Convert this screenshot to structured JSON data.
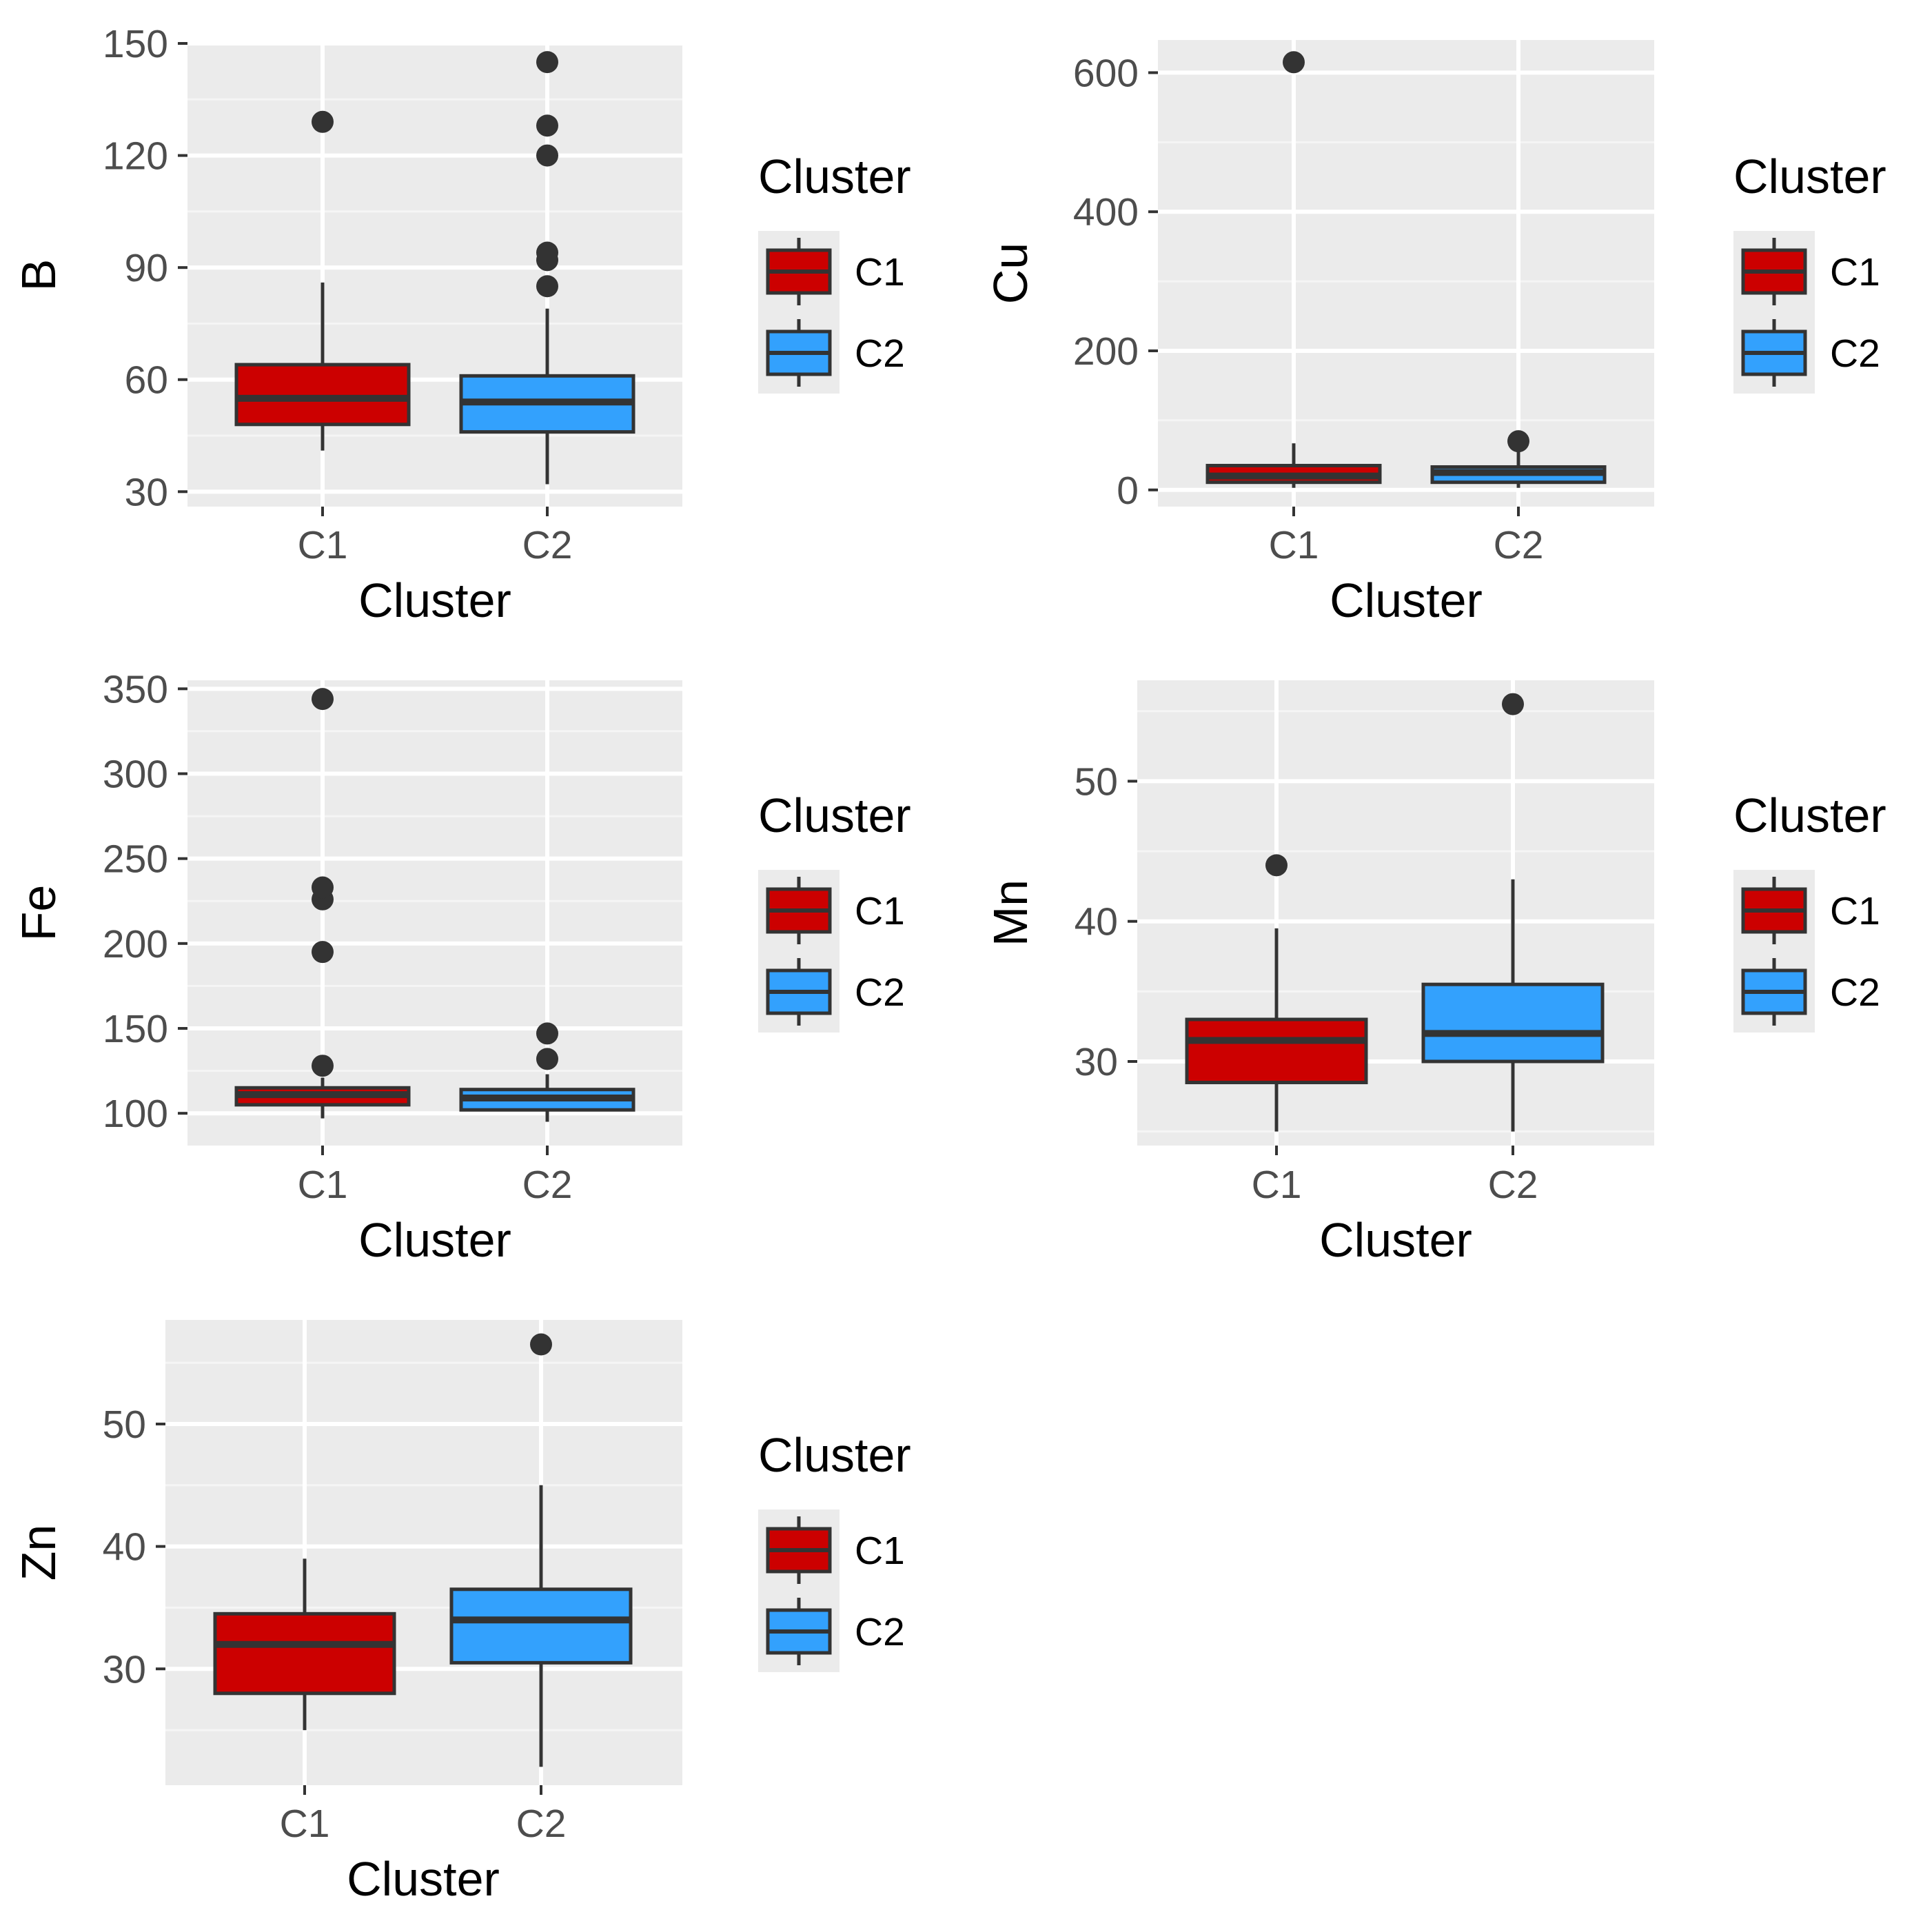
{
  "colors": {
    "panel_bg": "#ebebeb",
    "grid_major": "#ffffff",
    "grid_minor": "#f5f5f5",
    "box_outline": "#333333",
    "tick_text": "#4d4d4d",
    "C1": "#cc0000",
    "C2": "#33a1fd"
  },
  "chart_data": [
    {
      "type": "box",
      "ylabel": "B",
      "xlabel": "Cluster",
      "categories": [
        "C1",
        "C2"
      ],
      "ylim": [
        26,
        150
      ],
      "yticks": [
        30,
        60,
        90,
        120,
        150
      ],
      "ytick_labels": [
        "30",
        "60",
        "90",
        "120",
        "150"
      ],
      "minor_ticks": [
        45,
        75,
        105,
        135
      ],
      "boxes": [
        {
          "name": "C1",
          "q1": 48,
          "median": 55,
          "q3": 64,
          "low": 41,
          "high": 86,
          "outliers": [
            129
          ]
        },
        {
          "name": "C2",
          "q1": 46,
          "median": 54,
          "q3": 61,
          "low": 32,
          "high": 79,
          "outliers": [
            85,
            92,
            94,
            120,
            128,
            145
          ]
        }
      ],
      "legend": {
        "title": "Cluster",
        "entries": [
          "C1",
          "C2"
        ]
      }
    },
    {
      "type": "box",
      "ylabel": "Cu",
      "xlabel": "Cluster",
      "categories": [
        "C1",
        "C2"
      ],
      "ylim": [
        -24,
        647
      ],
      "yticks": [
        0,
        200,
        400,
        600
      ],
      "ytick_labels": [
        "0",
        "200",
        "400",
        "600"
      ],
      "minor_ticks": [
        100,
        300,
        500
      ],
      "boxes": [
        {
          "name": "C1",
          "q1": 11,
          "median": 20,
          "q3": 35,
          "low": 3,
          "high": 67,
          "outliers": [
            615
          ]
        },
        {
          "name": "C2",
          "q1": 11,
          "median": 25,
          "q3": 33,
          "low": 3,
          "high": 58,
          "outliers": [
            70
          ]
        }
      ],
      "legend": {
        "title": "Cluster",
        "entries": [
          "C1",
          "C2"
        ]
      }
    },
    {
      "type": "box",
      "ylabel": "Fe",
      "xlabel": "Cluster",
      "categories": [
        "C1",
        "C2"
      ],
      "ylim": [
        81,
        355
      ],
      "yticks": [
        100,
        150,
        200,
        250,
        300,
        350
      ],
      "ytick_labels": [
        "100",
        "150",
        "200",
        "250",
        "300",
        "350"
      ],
      "minor_ticks": [
        125,
        175,
        225,
        275,
        325
      ],
      "boxes": [
        {
          "name": "C1",
          "q1": 105,
          "median": 111,
          "q3": 115,
          "low": 97,
          "high": 121,
          "outliers": [
            128,
            195,
            226,
            233,
            344
          ]
        },
        {
          "name": "C2",
          "q1": 102,
          "median": 109,
          "q3": 114,
          "low": 95,
          "high": 123,
          "outliers": [
            132,
            147
          ]
        }
      ],
      "legend": {
        "title": "Cluster",
        "entries": [
          "C1",
          "C2"
        ]
      }
    },
    {
      "type": "box",
      "ylabel": "Mn",
      "xlabel": "Cluster",
      "categories": [
        "C1",
        "C2"
      ],
      "ylim": [
        24,
        57.2
      ],
      "yticks": [
        30,
        40,
        50
      ],
      "ytick_labels": [
        "30",
        "40",
        "50"
      ],
      "minor_ticks": [
        25,
        35,
        45,
        55
      ],
      "boxes": [
        {
          "name": "C1",
          "q1": 28.5,
          "median": 31.5,
          "q3": 33,
          "low": 25,
          "high": 39.5,
          "outliers": [
            44
          ]
        },
        {
          "name": "C2",
          "q1": 30,
          "median": 32,
          "q3": 35.5,
          "low": 25,
          "high": 43,
          "outliers": [
            55.5
          ]
        }
      ],
      "legend": {
        "title": "Cluster",
        "entries": [
          "C1",
          "C2"
        ]
      }
    },
    {
      "type": "box",
      "ylabel": "Zn",
      "xlabel": "Cluster",
      "categories": [
        "C1",
        "C2"
      ],
      "ylim": [
        20.5,
        58.5
      ],
      "yticks": [
        30,
        40,
        50
      ],
      "ytick_labels": [
        "30",
        "40",
        "50"
      ],
      "minor_ticks": [
        25,
        35,
        45,
        55
      ],
      "boxes": [
        {
          "name": "C1",
          "q1": 28,
          "median": 32,
          "q3": 34.5,
          "low": 25,
          "high": 39,
          "outliers": []
        },
        {
          "name": "C2",
          "q1": 30.5,
          "median": 34,
          "q3": 36.5,
          "low": 22,
          "high": 45,
          "outliers": [
            56.5
          ]
        }
      ],
      "legend": {
        "title": "Cluster",
        "entries": [
          "C1",
          "C2"
        ]
      }
    }
  ]
}
